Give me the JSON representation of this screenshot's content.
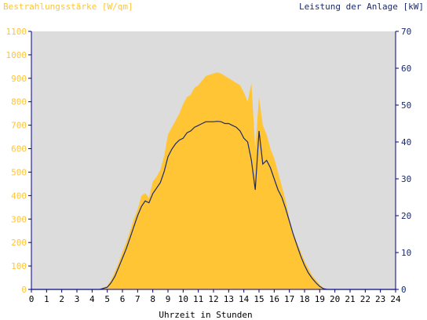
{
  "chart_data": {
    "type": "area",
    "title_left": "Bestrahlungsstärke [W/qm]",
    "title_right": "Leistung der Anlage [kW]",
    "xlabel": "Uhrzeit in Stunden",
    "xlim": [
      0,
      24
    ],
    "x_ticks": [
      "0",
      "1",
      "2",
      "3",
      "4",
      "5",
      "6",
      "7",
      "8",
      "9",
      "10",
      "11",
      "12",
      "13",
      "14",
      "15",
      "16",
      "17",
      "18",
      "19",
      "20",
      "21",
      "22",
      "23",
      "24"
    ],
    "y_left": {
      "ylim": [
        0,
        1100
      ],
      "ticks": [
        "0",
        "100",
        "200",
        "300",
        "400",
        "500",
        "600",
        "700",
        "800",
        "900",
        "1000",
        "1100"
      ]
    },
    "y_right": {
      "ylim": [
        0,
        70
      ],
      "ticks": [
        "0",
        "10",
        "20",
        "30",
        "40",
        "50",
        "60",
        "70"
      ]
    },
    "grid": false,
    "colors": {
      "irradiance": "#ffc535",
      "power": "#1a2a6c",
      "plot_bg": "#dcdcdc",
      "axis": "#000080"
    },
    "series": [
      {
        "name": "Bestrahlungsstärke",
        "axis": "left",
        "style": "area",
        "x": [
          0,
          4.5,
          5.0,
          5.25,
          5.5,
          5.75,
          6.0,
          6.25,
          6.5,
          6.75,
          7.0,
          7.25,
          7.5,
          7.75,
          8.0,
          8.25,
          8.5,
          8.75,
          9.0,
          9.25,
          9.5,
          9.75,
          10.0,
          10.25,
          10.5,
          10.75,
          11.0,
          11.25,
          11.5,
          11.75,
          12.0,
          12.25,
          12.5,
          12.75,
          13.0,
          13.25,
          13.5,
          13.75,
          14.0,
          14.25,
          14.5,
          14.75,
          15.0,
          15.25,
          15.5,
          15.75,
          16.0,
          16.25,
          16.5,
          16.75,
          17.0,
          17.25,
          17.5,
          17.75,
          18.0,
          18.25,
          18.5,
          18.75,
          19.0,
          19.25,
          19.5,
          19.75,
          20.0,
          20.25,
          20.5,
          24
        ],
        "values": [
          0,
          0,
          15,
          40,
          75,
          115,
          160,
          200,
          250,
          300,
          340,
          400,
          410,
          390,
          460,
          480,
          510,
          570,
          660,
          690,
          720,
          750,
          790,
          820,
          830,
          860,
          870,
          890,
          910,
          915,
          920,
          925,
          920,
          910,
          900,
          890,
          880,
          870,
          840,
          800,
          880,
          600,
          820,
          700,
          660,
          600,
          560,
          500,
          440,
          380,
          300,
          240,
          200,
          160,
          120,
          90,
          60,
          40,
          20,
          5,
          0,
          0,
          0,
          0,
          0,
          0
        ]
      },
      {
        "name": "Leistung der Anlage",
        "axis": "right",
        "style": "line",
        "x": [
          0,
          4.5,
          5.0,
          5.25,
          5.5,
          5.75,
          6.0,
          6.25,
          6.5,
          6.75,
          7.0,
          7.25,
          7.5,
          7.75,
          8.0,
          8.25,
          8.5,
          8.75,
          9.0,
          9.25,
          9.5,
          9.75,
          10.0,
          10.25,
          10.5,
          10.75,
          11.0,
          11.25,
          11.5,
          11.75,
          12.0,
          12.25,
          12.5,
          12.75,
          13.0,
          13.25,
          13.5,
          13.75,
          14.0,
          14.25,
          14.5,
          14.75,
          15.0,
          15.25,
          15.5,
          15.75,
          16.0,
          16.25,
          16.5,
          16.75,
          17.0,
          17.25,
          17.5,
          17.75,
          18.0,
          18.25,
          18.5,
          18.75,
          19.0,
          19.25,
          19.5,
          19.75,
          20.0,
          20.25,
          20.5,
          24
        ],
        "values": [
          0,
          0,
          0.6,
          1.8,
          3.5,
          6.0,
          8.5,
          11.0,
          14.0,
          17.0,
          20.0,
          22.5,
          24.0,
          23.5,
          26.0,
          27.5,
          29.0,
          32.0,
          36.0,
          38.0,
          39.5,
          40.5,
          41.0,
          42.5,
          43.0,
          44.0,
          44.5,
          45.0,
          45.5,
          45.5,
          45.5,
          45.6,
          45.5,
          45.0,
          45.0,
          44.5,
          44.0,
          43.0,
          41.0,
          40.0,
          35.0,
          27.0,
          43.0,
          34.0,
          35.0,
          33.0,
          30.0,
          27.0,
          25.0,
          22.0,
          18.5,
          15.0,
          12.0,
          9.0,
          6.5,
          4.5,
          3.0,
          1.8,
          0.8,
          0.2,
          0,
          0,
          0,
          0,
          0,
          0
        ]
      }
    ]
  }
}
